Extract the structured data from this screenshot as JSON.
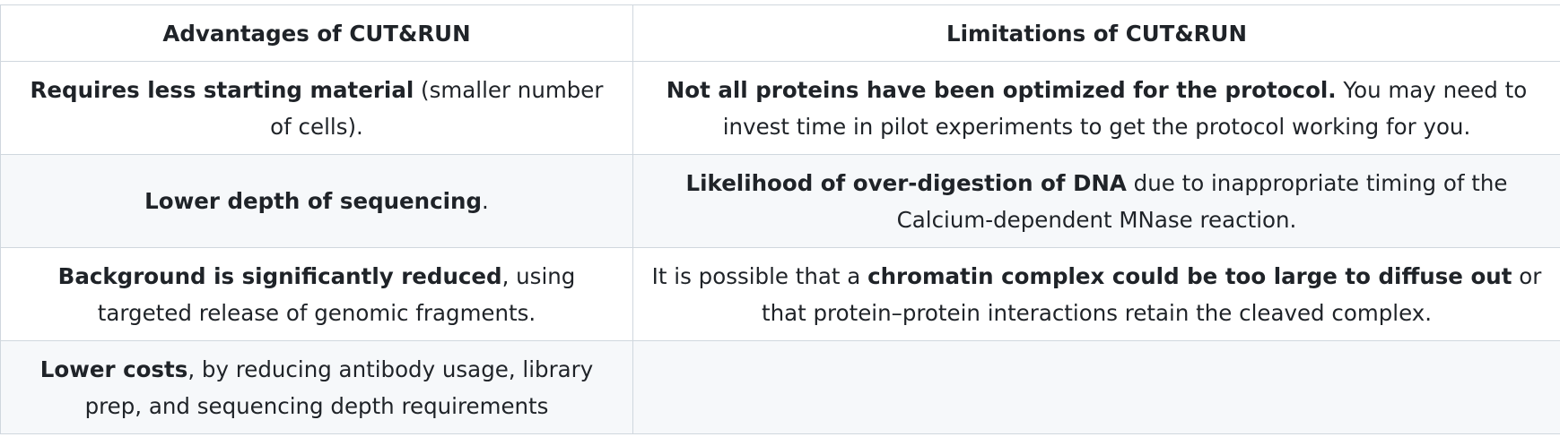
{
  "table": {
    "headers": [
      "Advantages of CUT&RUN",
      "Limitations of CUT&RUN"
    ],
    "rows": [
      {
        "advantage": {
          "bold": "Requires less starting material",
          "rest": " (smaller number of cells)."
        },
        "limitation": {
          "bold": "Not all proteins have been optimized for the protocol.",
          "rest": " You may need to invest time in pilot experiments to get the protocol working for you."
        }
      },
      {
        "advantage": {
          "bold": "Lower depth of sequencing",
          "rest": "."
        },
        "limitation": {
          "bold": "Likelihood of over-digestion of DNA",
          "rest": " due to inappropriate timing of the Calcium-dependent MNase reaction."
        }
      },
      {
        "advantage": {
          "bold": "Background is significantly reduced",
          "rest": ", using targeted release of genomic fragments."
        },
        "limitation": {
          "pre": "It is possible that a ",
          "bold": "chromatin complex could be too large to diffuse out",
          "rest": " or that protein–protein interactions retain the cleaved complex."
        }
      },
      {
        "advantage": {
          "bold": "Lower costs",
          "rest": ", by reducing antibody usage, library prep, and sequencing depth requirements"
        },
        "limitation": {
          "bold": "",
          "rest": ""
        }
      }
    ]
  }
}
